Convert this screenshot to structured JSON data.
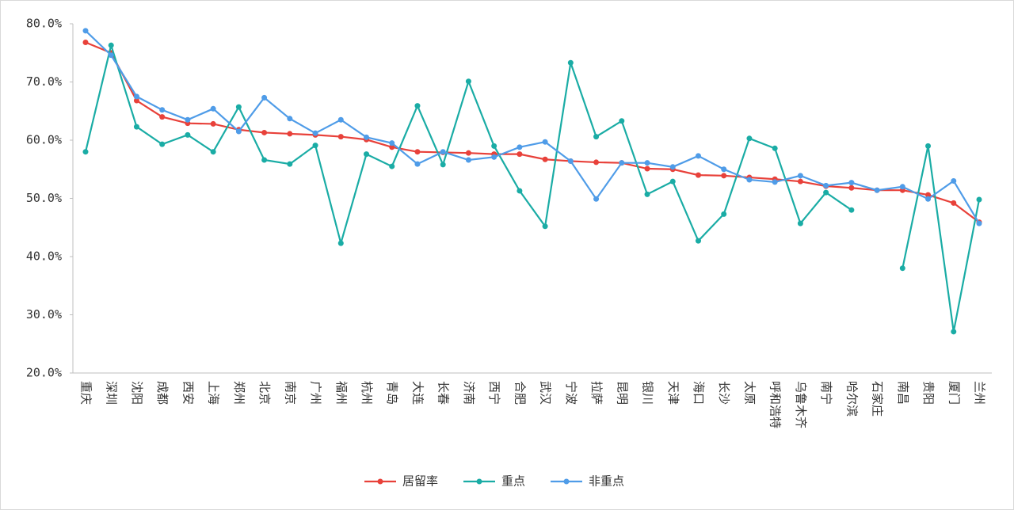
{
  "chart_data": {
    "type": "line",
    "categories": [
      "重庆",
      "深圳",
      "沈阳",
      "成都",
      "西安",
      "上海",
      "郑州",
      "北京",
      "南京",
      "广州",
      "福州",
      "杭州",
      "青岛",
      "大连",
      "长春",
      "济南",
      "西宁",
      "合肥",
      "武汉",
      "宁波",
      "拉萨",
      "昆明",
      "银川",
      "天津",
      "海口",
      "长沙",
      "太原",
      "呼和浩特",
      "乌鲁木齐",
      "南宁",
      "哈尔滨",
      "石家庄",
      "南昌",
      "贵阳",
      "厦门",
      "兰州"
    ],
    "series": [
      {
        "name": "居留率",
        "color": "#e8413a",
        "values": [
          76.8,
          75.0,
          66.8,
          64.0,
          62.9,
          62.8,
          61.8,
          61.3,
          61.1,
          60.9,
          60.6,
          60.1,
          58.8,
          58.0,
          57.9,
          57.8,
          57.6,
          57.6,
          56.7,
          56.4,
          56.2,
          56.1,
          55.1,
          55.0,
          54.0,
          53.9,
          53.6,
          53.3,
          52.9,
          52.1,
          51.8,
          51.4,
          51.4,
          50.6,
          49.2,
          45.9
        ]
      },
      {
        "name": "重点",
        "color": "#1aaca5",
        "values": [
          58.0,
          76.3,
          62.3,
          59.3,
          60.9,
          58.0,
          65.7,
          56.6,
          55.9,
          59.1,
          42.3,
          57.6,
          55.5,
          65.9,
          55.8,
          70.1,
          59.0,
          51.3,
          45.2,
          73.3,
          60.6,
          63.3,
          50.7,
          52.9,
          42.7,
          47.3,
          60.3,
          58.6,
          45.7,
          51.0,
          48.0,
          null,
          38.0,
          59.0,
          27.1,
          49.8
        ]
      },
      {
        "name": "非重点",
        "color": "#4f9ce8",
        "values": [
          78.8,
          74.6,
          67.5,
          65.2,
          63.5,
          65.4,
          61.5,
          67.3,
          63.7,
          61.2,
          63.5,
          60.5,
          59.5,
          55.9,
          58.0,
          56.6,
          57.1,
          58.8,
          59.7,
          56.4,
          49.9,
          56.1,
          56.1,
          55.4,
          57.3,
          55.0,
          53.2,
          52.8,
          53.9,
          52.2,
          52.7,
          51.4,
          52.0,
          49.9,
          53.0,
          45.7
        ]
      }
    ],
    "ylim": [
      20,
      80
    ],
    "yticks": [
      {
        "value": 20,
        "label": "20.0%"
      },
      {
        "value": 30,
        "label": "30.0%"
      },
      {
        "value": 40,
        "label": "40.0%"
      },
      {
        "value": 50,
        "label": "50.0%"
      },
      {
        "value": 60,
        "label": "60.0%"
      },
      {
        "value": 70,
        "label": "70.0%"
      },
      {
        "value": 80,
        "label": "80.0%"
      }
    ],
    "legend": "bottom"
  }
}
